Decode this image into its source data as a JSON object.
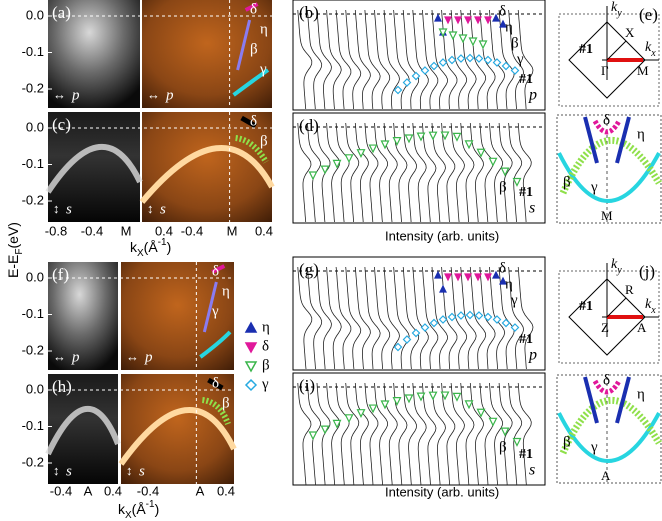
{
  "y_label": {
    "text": "E-E",
    "sub": "F",
    "unit": "(eV)"
  },
  "x_label": {
    "text": "k",
    "sub": "X",
    "unit": "(Å",
    "sup": "-1",
    "close": ")"
  },
  "y_ticks": [
    "0.0",
    "-0.1",
    "-0.2"
  ],
  "top_x_ticks": [
    "-0.8",
    "-0.4",
    "M",
    "0.4",
    "-0.4",
    "M",
    "0.4"
  ],
  "bottom_x_ticks": [
    "-0.4",
    "A",
    "0.4",
    "-0.4",
    "A",
    "0.4"
  ],
  "image_panels": [
    {
      "label": "(a)",
      "polarization": "p",
      "band_labels": [
        "δ",
        "η",
        "β",
        "γ"
      ]
    },
    {
      "label": "(c)",
      "polarization": "s",
      "band_labels": [
        "δ",
        "β"
      ]
    },
    {
      "label": "(f)",
      "polarization": "p",
      "band_labels": [
        "δ",
        "η",
        "γ"
      ]
    },
    {
      "label": "(h)",
      "polarization": "s",
      "band_labels": [
        "δ",
        "β"
      ]
    }
  ],
  "edc_panels": [
    {
      "label": "(b)",
      "sample": "#1",
      "polarization": "p",
      "band_labels": [
        "δ",
        "η",
        "β",
        "γ"
      ]
    },
    {
      "label": "(d)",
      "sample": "#1",
      "polarization": "s",
      "band_labels": [
        "β"
      ]
    },
    {
      "label": "(g)",
      "sample": "#1",
      "polarization": "p",
      "band_labels": [
        "δ",
        "η",
        "γ"
      ]
    },
    {
      "label": "(i)",
      "sample": "#1",
      "polarization": "s",
      "band_labels": [
        "β"
      ]
    }
  ],
  "intensity_label": "Intensity (arb. units)",
  "legend": [
    {
      "name": "η",
      "color": "#1a2fb0",
      "marker": "up"
    },
    {
      "name": "δ",
      "color": "#e0189a",
      "marker": "down"
    },
    {
      "name": "β",
      "color": "#39b54a",
      "marker": "down-open"
    },
    {
      "name": "γ",
      "color": "#27aae1",
      "marker": "diamond-open"
    }
  ],
  "bz_panels": [
    {
      "label": "(e)",
      "k": "k",
      "y_sub": "y",
      "x_sub": "x",
      "top_point": "X",
      "center_point": "Γ",
      "edge_point": "M",
      "sample": "#1"
    },
    {
      "label": "(j)",
      "k": "k",
      "y_sub": "y",
      "x_sub": "x",
      "top_point": "R",
      "center_point": "Z",
      "edge_point": "A",
      "sample": "#1"
    }
  ],
  "fs_panels": [
    {
      "band_labels": [
        "δ",
        "η",
        "β",
        "γ"
      ],
      "point": "M"
    },
    {
      "band_labels": [
        "δ",
        "η",
        "β",
        "γ"
      ],
      "point": "A"
    }
  ]
}
